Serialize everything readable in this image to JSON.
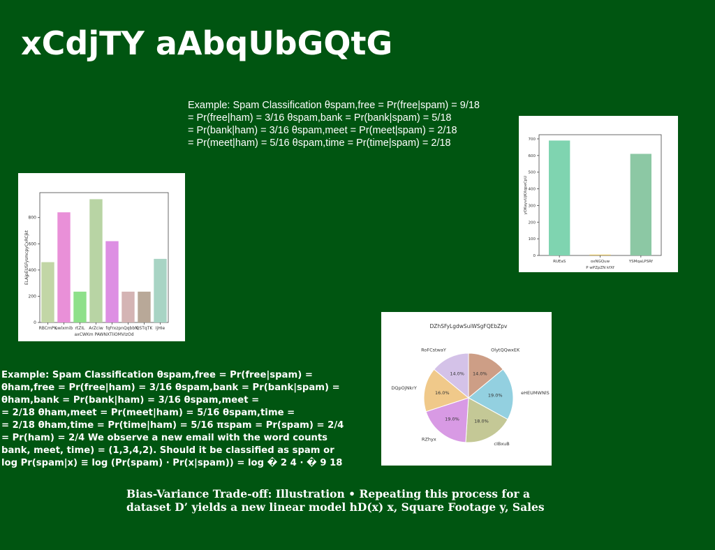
{
  "slide": {
    "title": "xCdjTY aAbqUbGQtG",
    "block1": [
      "Example: Spam Classification θspam,free = Pr(free|spam) = 9/18",
      "= Pr(free|ham) = 3/16 θspam,bank = Pr(bank|spam) = 5/18",
      "= Pr(bank|ham) = 3/16 θspam,meet = Pr(meet|spam) = 2/18",
      "= Pr(meet|ham) = 5/16 θspam,time = Pr(time|spam) = 2/18"
    ],
    "block2": [
      "Example: Spam Classification θspam,free = Pr(free|spam) =",
      "θham,free = Pr(free|ham) = 3/16 θspam,bank = Pr(bank|spam) =",
      "θham,bank = Pr(bank|ham) = 3/16 θspam,meet =",
      "= 2/18 θham,meet = Pr(meet|ham) = 5/16 θspam,time =",
      "= 2/18 θham,time = Pr(time|ham) = 5/16 πspam = Pr(spam) = 2/4",
      "= Pr(ham) = 2/4 We observe a new email with the word counts",
      "bank, meet, time) = (1,3,4,2). Should it be classified as spam or",
      "log Pr(spam|x) ≡ log (Pr(spam) · Pr(x|spam)) = log � 2 4 · � 9 18"
    ],
    "block3": [
      "Bias-Variance Trade-off: Illustration • Repeating this process for a",
      "dataset D’ yields a new linear model hD(x) x, Square Footage y, Sales"
    ]
  },
  "chart_data": [
    {
      "type": "bar",
      "title": "",
      "xlabel": "axCWKm PAWNXTIiOMVIzOd",
      "ylabel": "ELAjpEUSFysmcpyCxRCjkt",
      "categories": [
        "RBCmPK",
        "uwlxmib",
        "rtZIL",
        "ArZciw",
        "fqFrxz",
        "pnQqbbN",
        "QSTqTK",
        "IjHIe"
      ],
      "values": [
        460,
        840,
        235,
        940,
        620,
        235,
        235,
        485
      ],
      "colors": [
        "#c2d6a6",
        "#e990d8",
        "#8ee08a",
        "#b8d4a4",
        "#dd8fe3",
        "#d4b4b4",
        "#b8a898",
        "#a8d4c4"
      ],
      "yticks": [
        0,
        200,
        400,
        600,
        800
      ],
      "ylim": [
        0,
        990
      ],
      "grid": false
    },
    {
      "type": "bar",
      "title": "",
      "xlabel": "P wPZpZN  kfXf",
      "ylabel": "yOKayvUjKXqpeCpU",
      "categories": [
        "RUEaS",
        "oxNGQuw",
        "YSMqaLPSRf"
      ],
      "values": [
        690,
        5,
        610
      ],
      "colors": [
        "#7fd4b0",
        "#e0c060",
        "#8cc8a4"
      ],
      "yticks": [
        0,
        100,
        200,
        300,
        400,
        500,
        600,
        700
      ],
      "ylim": [
        0,
        725
      ],
      "grid": false
    },
    {
      "type": "pie",
      "title": "DZhSFyLgdwSuiWSgFQEbZpv",
      "labels": [
        "OlytQQwxEK",
        "eHEUMWNlS",
        "cIBxuB",
        "RZhyx",
        "DQpOjNkrY",
        "RoFCstwaY"
      ],
      "values": [
        14.0,
        19.0,
        18.0,
        19.0,
        16.0,
        14.0
      ],
      "autopct": [
        "14.0%",
        "19.0%",
        "18.0%",
        "19.0%",
        "16.0%",
        "14.0%"
      ],
      "colors": [
        "#cd9e86",
        "#93d0e0",
        "#c4c896",
        "#d89ae4",
        "#f0c98a",
        "#d4c2e8"
      ],
      "startangle": 90,
      "direction": "clockwise"
    }
  ]
}
